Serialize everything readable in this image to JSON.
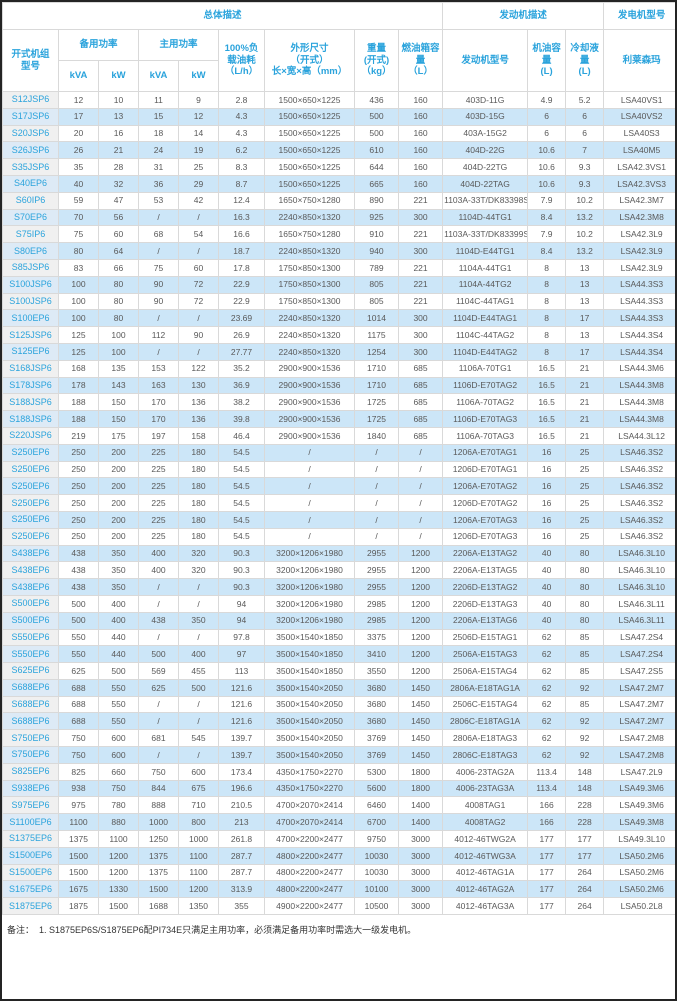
{
  "table": {
    "header": {
      "group_overall": "总体描述",
      "group_engine": "发动机描述",
      "group_alternator": "发电机型号",
      "col_model": "开式机组\n型号",
      "col_standby_power": "备用功率",
      "col_prime_power": "主用功率",
      "unit_kva": "kVA",
      "unit_kw": "kW",
      "col_fuel_consumption": "100%负\n载油耗\n（L/h）",
      "col_dimensions": "外形尺寸\n（开式）\n长×宽×高（mm）",
      "col_weight": "重量\n(开式)\n（kg）",
      "col_fuel_tank": "燃油箱容\n量\n（L）",
      "col_engine_model": "发动机型号",
      "col_oil_capacity": "机油容量\n(L)",
      "col_coolant_capacity": "冷却液量\n(L)",
      "col_alternator_brand": "利莱森玛"
    },
    "rows": [
      [
        "S12JSP6",
        "12",
        "10",
        "11",
        "9",
        "2.8",
        "1500×650×1225",
        "436",
        "160",
        "403D-11G",
        "4.9",
        "5.2",
        "LSA40VS1"
      ],
      [
        "S17JSP6",
        "17",
        "13",
        "15",
        "12",
        "4.3",
        "1500×650×1225",
        "500",
        "160",
        "403D-15G",
        "6",
        "6",
        "LSA40VS2"
      ],
      [
        "S20JSP6",
        "20",
        "16",
        "18",
        "14",
        "4.3",
        "1500×650×1225",
        "500",
        "160",
        "403A-15G2",
        "6",
        "6",
        "LSA40S3"
      ],
      [
        "S26JSP6",
        "26",
        "21",
        "24",
        "19",
        "6.2",
        "1500×650×1225",
        "610",
        "160",
        "404D-22G",
        "10.6",
        "7",
        "LSA40M5"
      ],
      [
        "S35JSP6",
        "35",
        "28",
        "31",
        "25",
        "8.3",
        "1500×650×1225",
        "644",
        "160",
        "404D-22TG",
        "10.6",
        "9.3",
        "LSA42.3VS1"
      ],
      [
        "S40EP6",
        "40",
        "32",
        "36",
        "29",
        "8.7",
        "1500×650×1225",
        "665",
        "160",
        "404D-22TAG",
        "10.6",
        "9.3",
        "LSA42.3VS3"
      ],
      [
        "S60IP6",
        "59",
        "47",
        "53",
        "42",
        "12.4",
        "1650×750×1280",
        "890",
        "221",
        "1103A-33T/DK83398S",
        "7.9",
        "10.2",
        "LSA42.3M7"
      ],
      [
        "S70EP6",
        "70",
        "56",
        "/",
        "/",
        "16.3",
        "2240×850×1320",
        "925",
        "300",
        "1104D-44TG1",
        "8.4",
        "13.2",
        "LSA42.3M8"
      ],
      [
        "S75IP6",
        "75",
        "60",
        "68",
        "54",
        "16.6",
        "1650×750×1280",
        "910",
        "221",
        "1103A-33T/DK83399S",
        "7.9",
        "10.2",
        "LSA42.3L9"
      ],
      [
        "S80EP6",
        "80",
        "64",
        "/",
        "/",
        "18.7",
        "2240×850×1320",
        "940",
        "300",
        "1104D-E44TG1",
        "8.4",
        "13.2",
        "LSA42.3L9"
      ],
      [
        "S85JSP6",
        "83",
        "66",
        "75",
        "60",
        "17.8",
        "1750×850×1300",
        "789",
        "221",
        "1104A-44TG1",
        "8",
        "13",
        "LSA42.3L9"
      ],
      [
        "S100JSP6",
        "100",
        "80",
        "90",
        "72",
        "22.9",
        "1750×850×1300",
        "805",
        "221",
        "1104A-44TG2",
        "8",
        "13",
        "LSA44.3S3"
      ],
      [
        "S100JSP6",
        "100",
        "80",
        "90",
        "72",
        "22.9",
        "1750×850×1300",
        "805",
        "221",
        "1104C-44TAG1",
        "8",
        "13",
        "LSA44.3S3"
      ],
      [
        "S100EP6",
        "100",
        "80",
        "/",
        "/",
        "23.69",
        "2240×850×1320",
        "1014",
        "300",
        "1104D-E44TAG1",
        "8",
        "17",
        "LSA44.3S3"
      ],
      [
        "S125JSP6",
        "125",
        "100",
        "112",
        "90",
        "26.9",
        "2240×850×1320",
        "1175",
        "300",
        "1104C-44TAG2",
        "8",
        "13",
        "LSA44.3S4"
      ],
      [
        "S125EP6",
        "125",
        "100",
        "/",
        "/",
        "27.77",
        "2240×850×1320",
        "1254",
        "300",
        "1104D-E44TAG2",
        "8",
        "17",
        "LSA44.3S4"
      ],
      [
        "S168JSP6",
        "168",
        "135",
        "153",
        "122",
        "35.2",
        "2900×900×1536",
        "1710",
        "685",
        "1106A-70TG1",
        "16.5",
        "21",
        "LSA44.3M6"
      ],
      [
        "S178JSP6",
        "178",
        "143",
        "163",
        "130",
        "36.9",
        "2900×900×1536",
        "1710",
        "685",
        "1106D-E70TAG2",
        "16.5",
        "21",
        "LSA44.3M8"
      ],
      [
        "S188JSP6",
        "188",
        "150",
        "170",
        "136",
        "38.2",
        "2900×900×1536",
        "1725",
        "685",
        "1106A-70TAG2",
        "16.5",
        "21",
        "LSA44.3M8"
      ],
      [
        "S188JSP6",
        "188",
        "150",
        "170",
        "136",
        "39.8",
        "2900×900×1536",
        "1725",
        "685",
        "1106D-E70TAG3",
        "16.5",
        "21",
        "LSA44.3M8"
      ],
      [
        "S220JSP6",
        "219",
        "175",
        "197",
        "158",
        "46.4",
        "2900×900×1536",
        "1840",
        "685",
        "1106A-70TAG3",
        "16.5",
        "21",
        "LSA44.3L12"
      ],
      [
        "S250EP6",
        "250",
        "200",
        "225",
        "180",
        "54.5",
        "/",
        "/",
        "/",
        "1206A-E70TAG1",
        "16",
        "25",
        "LSA46.3S2"
      ],
      [
        "S250EP6",
        "250",
        "200",
        "225",
        "180",
        "54.5",
        "/",
        "/",
        "/",
        "1206D-E70TAG1",
        "16",
        "25",
        "LSA46.3S2"
      ],
      [
        "S250EP6",
        "250",
        "200",
        "225",
        "180",
        "54.5",
        "/",
        "/",
        "/",
        "1206A-E70TAG2",
        "16",
        "25",
        "LSA46.3S2"
      ],
      [
        "S250EP6",
        "250",
        "200",
        "225",
        "180",
        "54.5",
        "/",
        "/",
        "/",
        "1206D-E70TAG2",
        "16",
        "25",
        "LSA46.3S2"
      ],
      [
        "S250EP6",
        "250",
        "200",
        "225",
        "180",
        "54.5",
        "/",
        "/",
        "/",
        "1206A-E70TAG3",
        "16",
        "25",
        "LSA46.3S2"
      ],
      [
        "S250EP6",
        "250",
        "200",
        "225",
        "180",
        "54.5",
        "/",
        "/",
        "/",
        "1206D-E70TAG3",
        "16",
        "25",
        "LSA46.3S2"
      ],
      [
        "S438EP6",
        "438",
        "350",
        "400",
        "320",
        "90.3",
        "3200×1206×1980",
        "2955",
        "1200",
        "2206A-E13TAG2",
        "40",
        "80",
        "LSA46.3L10"
      ],
      [
        "S438EP6",
        "438",
        "350",
        "400",
        "320",
        "90.3",
        "3200×1206×1980",
        "2955",
        "1200",
        "2206A-E13TAG5",
        "40",
        "80",
        "LSA46.3L10"
      ],
      [
        "S438EP6",
        "438",
        "350",
        "/",
        "/",
        "90.3",
        "3200×1206×1980",
        "2955",
        "1200",
        "2206D-E13TAG2",
        "40",
        "80",
        "LSA46.3L10"
      ],
      [
        "S500EP6",
        "500",
        "400",
        "/",
        "/",
        "94",
        "3200×1206×1980",
        "2985",
        "1200",
        "2206D-E13TAG3",
        "40",
        "80",
        "LSA46.3L11"
      ],
      [
        "S500EP6",
        "500",
        "400",
        "438",
        "350",
        "94",
        "3200×1206×1980",
        "2985",
        "1200",
        "2206A-E13TAG6",
        "40",
        "80",
        "LSA46.3L11"
      ],
      [
        "S550EP6",
        "550",
        "440",
        "/",
        "/",
        "97.8",
        "3500×1540×1850",
        "3375",
        "1200",
        "2506D-E15TAG1",
        "62",
        "85",
        "LSA47.2S4"
      ],
      [
        "S550EP6",
        "550",
        "440",
        "500",
        "400",
        "97",
        "3500×1540×1850",
        "3410",
        "1200",
        "2506A-E15TAG3",
        "62",
        "85",
        "LSA47.2S4"
      ],
      [
        "S625EP6",
        "625",
        "500",
        "569",
        "455",
        "113",
        "3500×1540×1850",
        "3550",
        "1200",
        "2506A-E15TAG4",
        "62",
        "85",
        "LSA47.2S5"
      ],
      [
        "S688EP6",
        "688",
        "550",
        "625",
        "500",
        "121.6",
        "3500×1540×2050",
        "3680",
        "1450",
        "2806A-E18TAG1A",
        "62",
        "92",
        "LSA47.2M7"
      ],
      [
        "S688EP6",
        "688",
        "550",
        "/",
        "/",
        "121.6",
        "3500×1540×2050",
        "3680",
        "1450",
        "2506C-E15TAG4",
        "62",
        "85",
        "LSA47.2M7"
      ],
      [
        "S688EP6",
        "688",
        "550",
        "/",
        "/",
        "121.6",
        "3500×1540×2050",
        "3680",
        "1450",
        "2806C-E18TAG1A",
        "62",
        "92",
        "LSA47.2M7"
      ],
      [
        "S750EP6",
        "750",
        "600",
        "681",
        "545",
        "139.7",
        "3500×1540×2050",
        "3769",
        "1450",
        "2806A-E18TAG3",
        "62",
        "92",
        "LSA47.2M8"
      ],
      [
        "S750EP6",
        "750",
        "600",
        "/",
        "/",
        "139.7",
        "3500×1540×2050",
        "3769",
        "1450",
        "2806C-E18TAG3",
        "62",
        "92",
        "LSA47.2M8"
      ],
      [
        "S825EP6",
        "825",
        "660",
        "750",
        "600",
        "173.4",
        "4350×1750×2270",
        "5300",
        "1800",
        "4006-23TAG2A",
        "113.4",
        "148",
        "LSA47.2L9"
      ],
      [
        "S938EP6",
        "938",
        "750",
        "844",
        "675",
        "196.6",
        "4350×1750×2270",
        "5600",
        "1800",
        "4006-23TAG3A",
        "113.4",
        "148",
        "LSA49.3M6"
      ],
      [
        "S975EP6",
        "975",
        "780",
        "888",
        "710",
        "210.5",
        "4700×2070×2414",
        "6460",
        "1400",
        "4008TAG1",
        "166",
        "228",
        "LSA49.3M6"
      ],
      [
        "S1100EP6",
        "1100",
        "880",
        "1000",
        "800",
        "213",
        "4700×2070×2414",
        "6700",
        "1400",
        "4008TAG2",
        "166",
        "228",
        "LSA49.3M8"
      ],
      [
        "S1375EP6",
        "1375",
        "1100",
        "1250",
        "1000",
        "261.8",
        "4700×2200×2477",
        "9750",
        "3000",
        "4012-46TWG2A",
        "177",
        "177",
        "LSA49.3L10"
      ],
      [
        "S1500EP6",
        "1500",
        "1200",
        "1375",
        "1100",
        "287.7",
        "4800×2200×2477",
        "10030",
        "3000",
        "4012-46TWG3A",
        "177",
        "177",
        "LSA50.2M6"
      ],
      [
        "S1500EP6",
        "1500",
        "1200",
        "1375",
        "1100",
        "287.7",
        "4800×2200×2477",
        "10030",
        "3000",
        "4012-46TAG1A",
        "177",
        "264",
        "LSA50.2M6"
      ],
      [
        "S1675EP6",
        "1675",
        "1330",
        "1500",
        "1200",
        "313.9",
        "4800×2200×2477",
        "10100",
        "3000",
        "4012-46TAG2A",
        "177",
        "264",
        "LSA50.2M6"
      ],
      [
        "S1875EP6",
        "1875",
        "1500",
        "1688",
        "1350",
        "355",
        "4900×2200×2477",
        "10500",
        "3000",
        "4012-46TAG3A",
        "177",
        "264",
        "LSA50.2L8"
      ]
    ]
  },
  "footnote": "备注：  1. S1875EP6S/S1875EP6配PI734E只满足主用功率，必须满足备用功率时需选大一级发电机。",
  "colors": {
    "accent_blue": "#2aa3dc",
    "stripe_blue": "#cce6f8",
    "model_col_gray": "#f0f0f0",
    "border_gray": "#d9d9d9",
    "text_gray": "#595959"
  }
}
